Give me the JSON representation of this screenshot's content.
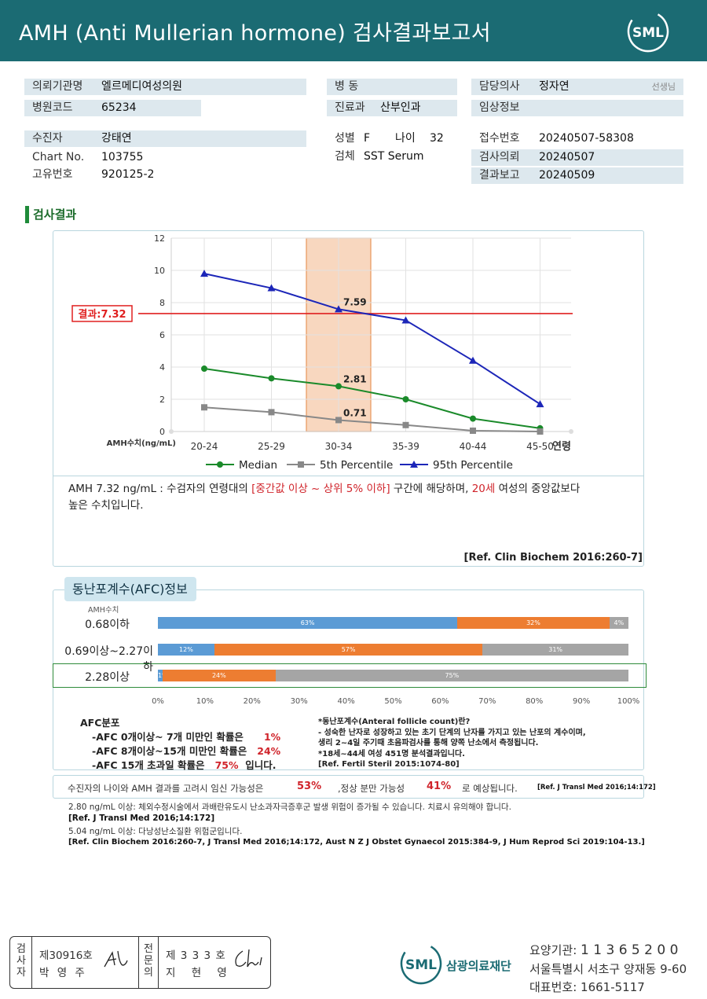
{
  "header": {
    "title": "AMH  (Anti  Mullerian  hormone) 검사결과보고서",
    "logo": "SML"
  },
  "info": {
    "institution": {
      "label": "의뢰기관명",
      "value": "엘르메디여성의원"
    },
    "hospital_code": {
      "label": "병원코드",
      "value": "65234"
    },
    "ward": {
      "label": "병  동",
      "value": ""
    },
    "department": {
      "label": "진료과",
      "value": "산부인과"
    },
    "doctor": {
      "label": "담당의사",
      "value": "정자연",
      "suffix": "선생님"
    },
    "clinical": {
      "label": "임상정보",
      "value": ""
    },
    "patient": {
      "label": "수진자",
      "value": "강태연"
    },
    "chart_no": {
      "label": "Chart No.",
      "value": "103755"
    },
    "unique_no": {
      "label": "고유번호",
      "value": "920125-2"
    },
    "sex": {
      "label": "성별",
      "value": "F"
    },
    "age": {
      "label": "나이",
      "value": "32"
    },
    "specimen": {
      "label": "검체",
      "value": "SST Serum"
    },
    "reception_no": {
      "label": "접수번호",
      "value": "20240507-58308"
    },
    "request_date": {
      "label": "검사의뢰",
      "value": "20240507"
    },
    "report_date": {
      "label": "결과보고",
      "value": "20240509"
    }
  },
  "section_title": "검사결과",
  "chart_data": {
    "type": "line",
    "categories": [
      "20-24",
      "25-29",
      "30-34",
      "35-39",
      "40-44",
      "45-50"
    ],
    "xlabel": "연령",
    "ylabel": "AMH수치(ng/mL)",
    "ylim": [
      0,
      12
    ],
    "yticks": [
      0,
      2,
      4,
      6,
      8,
      10,
      12
    ],
    "series": [
      {
        "name": "Median",
        "color": "#1a8a2a",
        "marker": "circle",
        "values": [
          3.9,
          3.3,
          2.81,
          2.0,
          0.8,
          0.2
        ]
      },
      {
        "name": "5th Percentile",
        "color": "#888888",
        "marker": "square",
        "values": [
          1.5,
          1.2,
          0.71,
          0.4,
          0.05,
          0.0
        ]
      },
      {
        "name": "95th Percentile",
        "color": "#1c26b8",
        "marker": "triangle",
        "values": [
          9.8,
          8.9,
          7.59,
          6.9,
          4.4,
          1.7
        ]
      }
    ],
    "highlight_category": "30-34",
    "result_line": {
      "value": 7.32,
      "label": "결과:7.32",
      "color": "#e02020"
    },
    "data_labels": [
      {
        "series": "95th Percentile",
        "category": "30-34",
        "text": "7.59"
      },
      {
        "series": "Median",
        "category": "30-34",
        "text": "2.81"
      },
      {
        "series": "5th Percentile",
        "category": "30-34",
        "text": "0.71"
      }
    ],
    "legend_position": "bottom",
    "grid": true
  },
  "comment": {
    "p1": "AMH  7.32 ng/mL : 수검자의 연령대의 ",
    "r1": "[중간값 이상 ~ 상위 5% 이하]",
    "p2": "  구간에 해당하며, ",
    "r2": "20세",
    "p3": " 여성의 중앙값보다",
    "p4": "높은 수치입니다.",
    "ref": "[Ref. Clin Biochem 2016:260-7]"
  },
  "afc": {
    "tab": "동난포계수(AFC)정보",
    "col_label": "AMH수치",
    "rows": [
      {
        "label": "0.68이하",
        "segments": [
          63,
          32,
          4
        ],
        "labels": [
          "63%",
          "32%",
          "4%"
        ]
      },
      {
        "label": "0.69이상~2.27이하",
        "segments": [
          12,
          57,
          31
        ],
        "labels": [
          "12%",
          "57%",
          "31%"
        ]
      },
      {
        "label": "2.28이상",
        "segments": [
          1,
          24,
          75
        ],
        "labels": [
          "1%",
          "24%",
          "75%"
        ]
      }
    ],
    "segment_colors": [
      "#5b9bd5",
      "#ed7d31",
      "#a5a5a5"
    ],
    "axis": [
      "0%",
      "10%",
      "20%",
      "30%",
      "40%",
      "50%",
      "60%",
      "70%",
      "80%",
      "90%",
      "100%"
    ],
    "notes_left": {
      "title": "AFC분포",
      "l1": "-AFC  0개이상~ 7개 미만인 확률은",
      "v1": "1%",
      "l2": "-AFC  8개이상~15개 미만인 확률은",
      "v2": "24%",
      "l3a": "-AFC  15개 초과일 확률은",
      "v3": "75%",
      "l3b": "입니다."
    },
    "notes_right": {
      "l1": "*동난포계수(Anteral  follicle  count)란?",
      "l2": "-  성숙한 난자로 성장하고 있는 초기 단계의 난자를 가지고 있는 난포의 계수이며,",
      "l3": "   생리 2~4일 주기때 초음파검사를 통해 양쪽 난소에서 측정됩니다.",
      "l4": "*18세~44세 여성 451명 분석결과입니다.",
      "l5": "[Ref. Fertil Steril 2015:1074-80]"
    }
  },
  "pregnancy": {
    "t1": "수진자의  나이와 AMH 결과를 고려시 임신 가능성은",
    "v1": "53%",
    "t2": ",정상  분만 가능성",
    "v2": "41%",
    "t3": "로  예상됩니다.",
    "ref": "[Ref. J Transl Med 2016;14:172]"
  },
  "notes": {
    "n1": "2.80  ng/mL  이상: 체외수정시술에서 과배란유도시 난소과자극증후군 발생 위험이 증가될 수 있습니다. 치료시 유의해야 합니다.",
    "n2": "[Ref. J Transl Med 2016;14:172]",
    "n3": "5.04  ng/mL  이상: 다낭성난소질환 위험군입니다.",
    "n4": "[Ref. Clin Biochem 2016:260-7, J Transl Med 2016;14:172, Aust N Z J Obstet Gynaecol 2015:384-9, J Hum Reprod Sci 2019:104-13.]"
  },
  "signature": {
    "examiner_title": [
      "검",
      "사",
      "자"
    ],
    "examiner_no": "제30916호",
    "examiner_name": "박 영 주",
    "specialist_title": [
      "전",
      "문",
      "의"
    ],
    "specialist_no": "제 3 3 3 호",
    "specialist_name": "지 현 영"
  },
  "footer": {
    "org_logo": "SML",
    "org_name": "삼광의료재단",
    "code_label": "요양기관: ",
    "code": "1 1 3 6 5 2 0 0",
    "address": "서울특별시 서초구 양재동 9-60",
    "phone_label": "대표번호: ",
    "phone": "1661-5117"
  }
}
